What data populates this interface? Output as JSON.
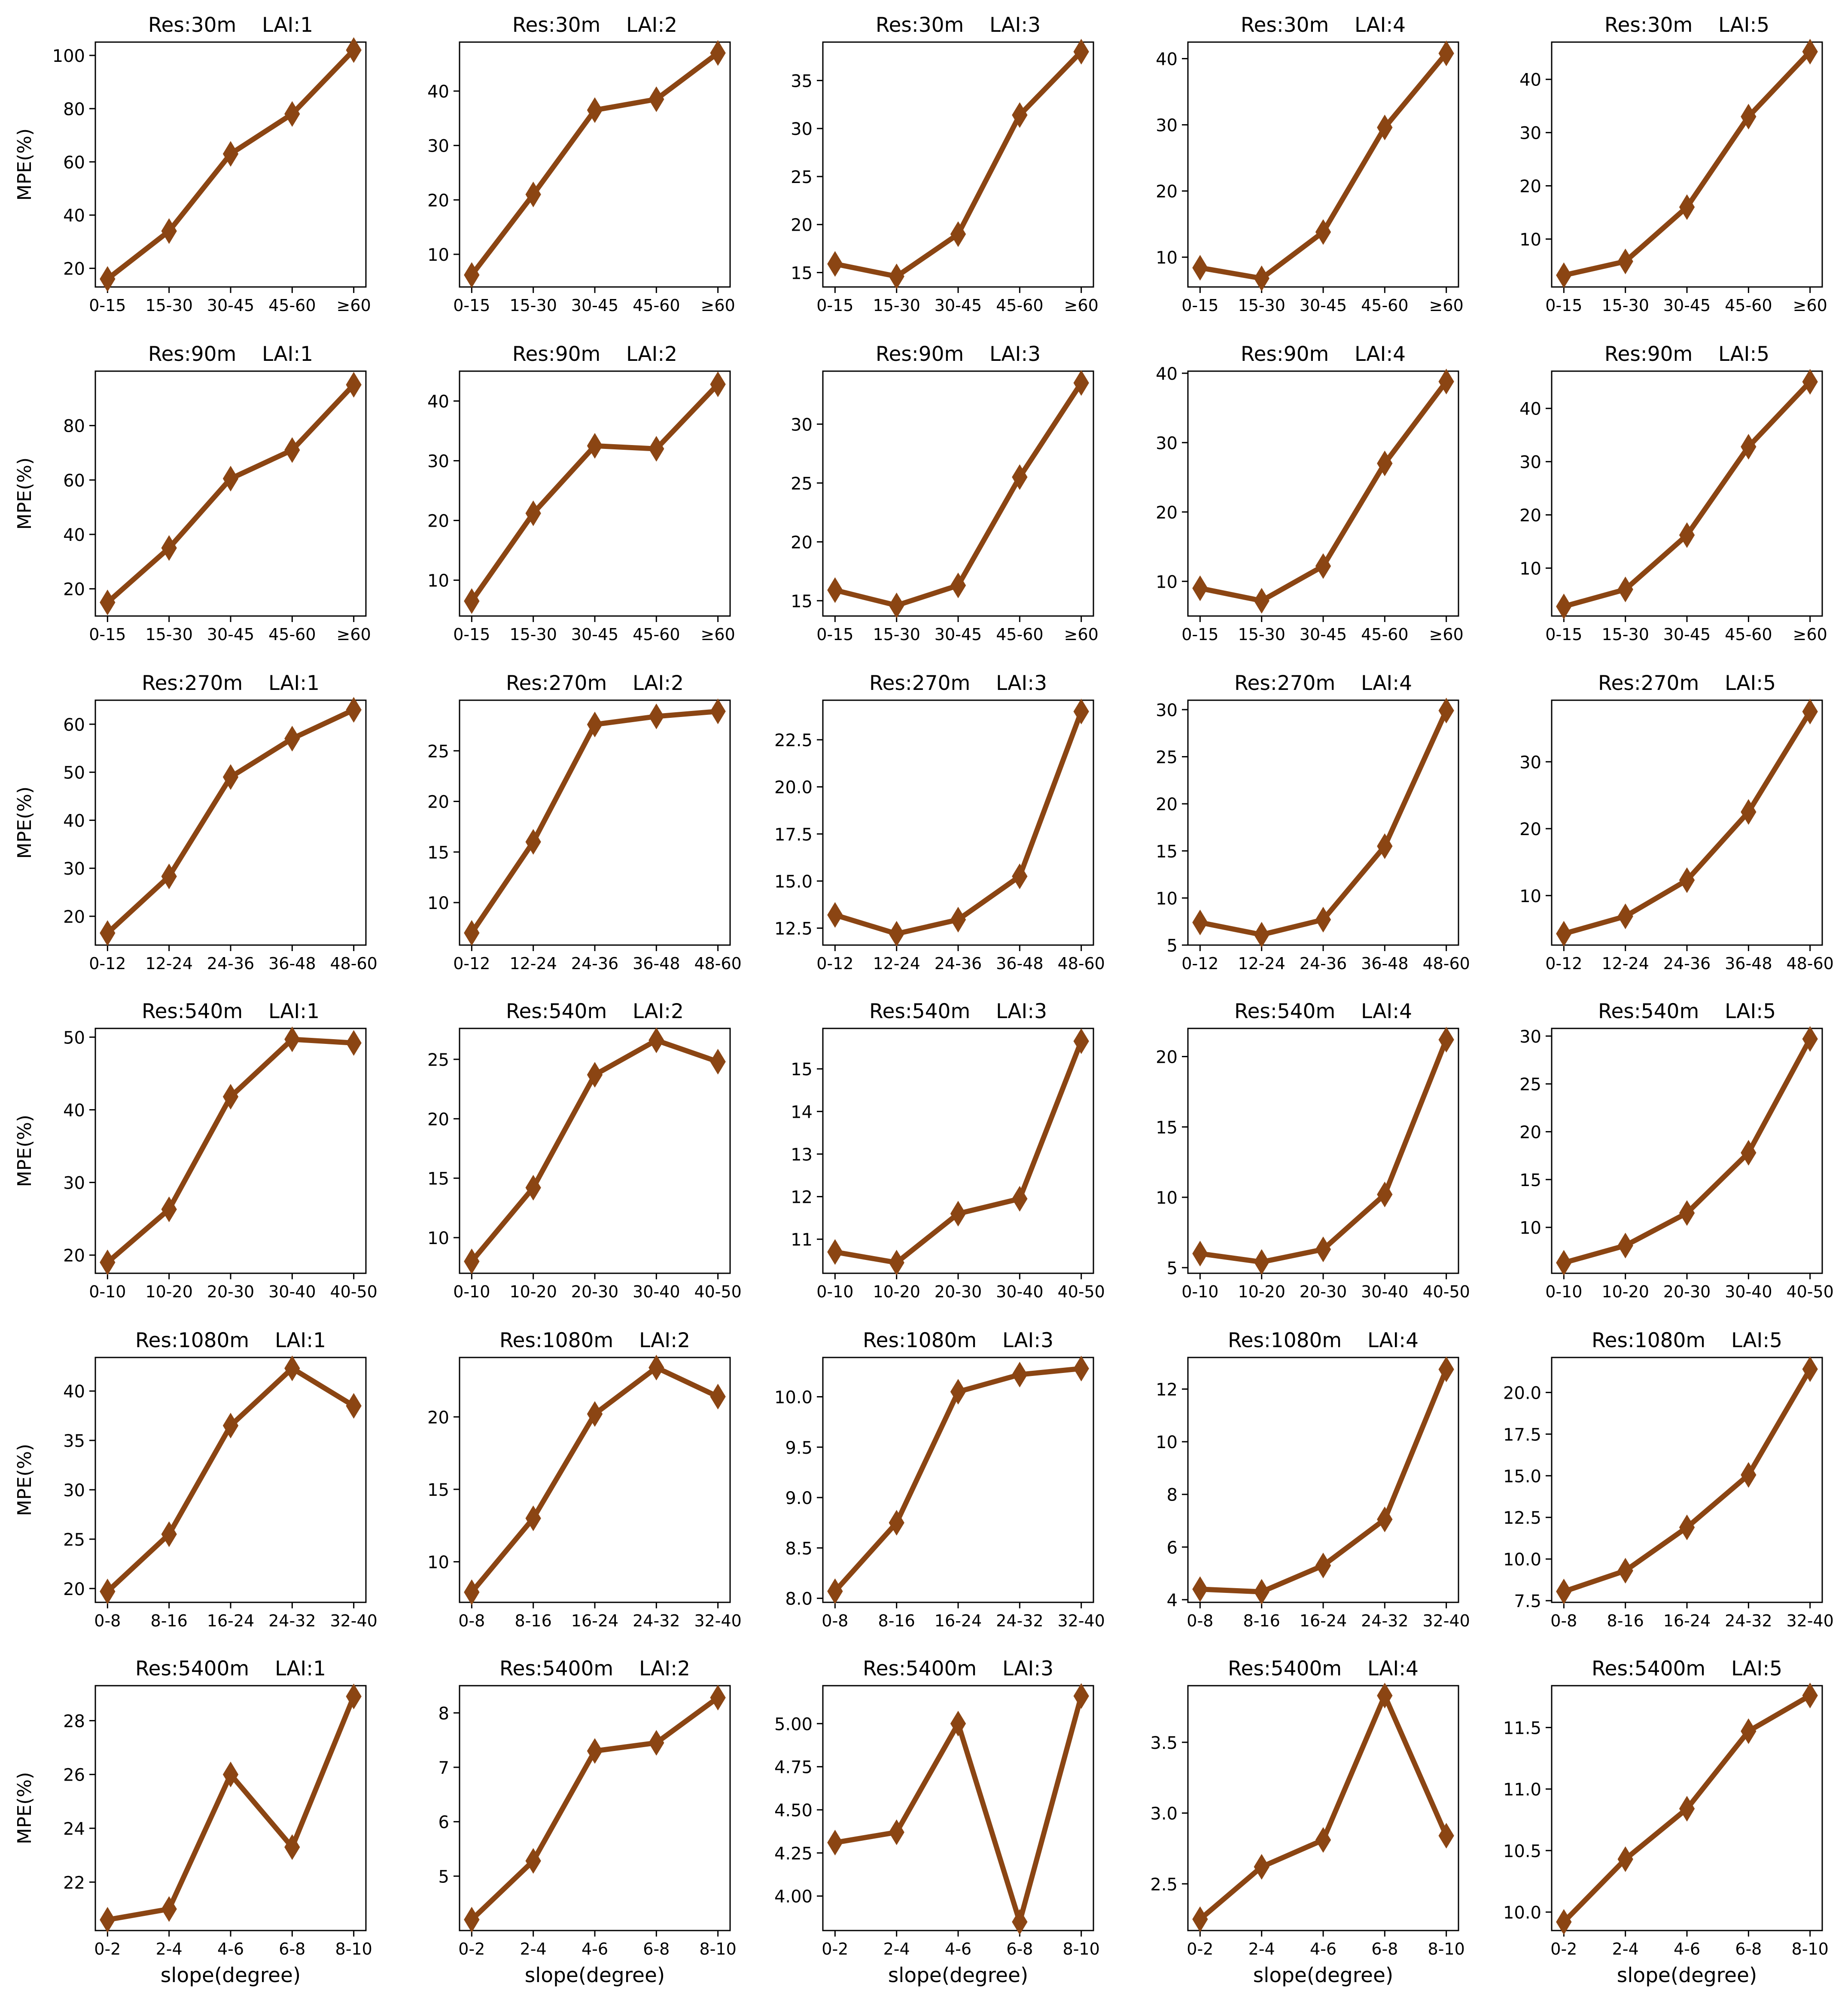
{
  "style": {
    "line_color": "#8B4513",
    "axis_color": "#000000",
    "background": "#ffffff"
  },
  "chart_data": [
    {
      "type": "line",
      "title": "Res:30m    LAI:1",
      "xlabel": "",
      "ylabel": "MPE(%)",
      "categories": [
        "0-15",
        "15-30",
        "30-45",
        "45-60",
        "≥60"
      ],
      "values": [
        16,
        34,
        63,
        78,
        102
      ],
      "ylim": [
        13,
        105
      ],
      "yticks": [
        20,
        40,
        60,
        80,
        100
      ],
      "ytick_labels": [
        "20",
        "40",
        "60",
        "80",
        "100"
      ]
    },
    {
      "type": "line",
      "title": "Res:30m    LAI:2",
      "xlabel": "",
      "ylabel": "",
      "categories": [
        "0-15",
        "15-30",
        "30-45",
        "45-60",
        "≥60"
      ],
      "values": [
        6.2,
        21,
        36.5,
        38.5,
        47
      ],
      "ylim": [
        4,
        49
      ],
      "yticks": [
        10,
        20,
        30,
        40
      ],
      "ytick_labels": [
        "10",
        "20",
        "30",
        "40"
      ]
    },
    {
      "type": "line",
      "title": "Res:30m    LAI:3",
      "xlabel": "",
      "ylabel": "",
      "categories": [
        "0-15",
        "15-30",
        "30-45",
        "45-60",
        "≥60"
      ],
      "values": [
        15.9,
        14.6,
        19,
        31.4,
        38
      ],
      "ylim": [
        13.5,
        39
      ],
      "yticks": [
        15,
        20,
        25,
        30,
        35
      ],
      "ytick_labels": [
        "15",
        "20",
        "25",
        "30",
        "35"
      ]
    },
    {
      "type": "line",
      "title": "Res:30m    LAI:4",
      "xlabel": "",
      "ylabel": "",
      "categories": [
        "0-15",
        "15-30",
        "30-45",
        "45-60",
        "≥60"
      ],
      "values": [
        8.4,
        6.8,
        13.8,
        29.6,
        40.8
      ],
      "ylim": [
        5.5,
        42.5
      ],
      "yticks": [
        10,
        20,
        30,
        40
      ],
      "ytick_labels": [
        "10",
        "20",
        "30",
        "40"
      ]
    },
    {
      "type": "line",
      "title": "Res:30m    LAI:5",
      "xlabel": "",
      "ylabel": "",
      "categories": [
        "0-15",
        "15-30",
        "30-45",
        "45-60",
        "≥60"
      ],
      "values": [
        3.2,
        5.8,
        16,
        33,
        45.2
      ],
      "ylim": [
        1,
        47
      ],
      "yticks": [
        10,
        20,
        30,
        40
      ],
      "ytick_labels": [
        "10",
        "20",
        "30",
        "40"
      ]
    },
    {
      "type": "line",
      "title": "Res:90m    LAI:1",
      "xlabel": "",
      "ylabel": "MPE(%)",
      "categories": [
        "0-15",
        "15-30",
        "30-45",
        "45-60",
        "≥60"
      ],
      "values": [
        15,
        35,
        60.5,
        71,
        95
      ],
      "ylim": [
        10,
        100
      ],
      "yticks": [
        20,
        40,
        60,
        80
      ],
      "ytick_labels": [
        "20",
        "40",
        "60",
        "80"
      ]
    },
    {
      "type": "line",
      "title": "Res:90m    LAI:2",
      "xlabel": "",
      "ylabel": "",
      "categories": [
        "0-15",
        "15-30",
        "30-45",
        "45-60",
        "≥60"
      ],
      "values": [
        6.5,
        21.2,
        32.5,
        32,
        42.8
      ],
      "ylim": [
        4,
        45
      ],
      "yticks": [
        10,
        20,
        30,
        40
      ],
      "ytick_labels": [
        "10",
        "20",
        "30",
        "40"
      ]
    },
    {
      "type": "line",
      "title": "Res:90m    LAI:3",
      "xlabel": "",
      "ylabel": "",
      "categories": [
        "0-15",
        "15-30",
        "30-45",
        "45-60",
        "≥60"
      ],
      "values": [
        15.9,
        14.6,
        16.3,
        25.5,
        33.5
      ],
      "ylim": [
        13.7,
        34.5
      ],
      "yticks": [
        15,
        20,
        25,
        30
      ],
      "ytick_labels": [
        "15",
        "20",
        "25",
        "30"
      ]
    },
    {
      "type": "line",
      "title": "Res:90m    LAI:4",
      "xlabel": "",
      "ylabel": "",
      "categories": [
        "0-15",
        "15-30",
        "30-45",
        "45-60",
        "≥60"
      ],
      "values": [
        9,
        7.2,
        12.2,
        27,
        38.8
      ],
      "ylim": [
        5,
        40.3
      ],
      "yticks": [
        10,
        20,
        30,
        40
      ],
      "ytick_labels": [
        "10",
        "20",
        "30",
        "40"
      ]
    },
    {
      "type": "line",
      "title": "Res:90m    LAI:5",
      "xlabel": "",
      "ylabel": "",
      "categories": [
        "0-15",
        "15-30",
        "30-45",
        "45-60",
        "≥60"
      ],
      "values": [
        2.8,
        6,
        16.2,
        32.8,
        45
      ],
      "ylim": [
        1,
        47
      ],
      "yticks": [
        10,
        20,
        30,
        40
      ],
      "ytick_labels": [
        "10",
        "20",
        "30",
        "40"
      ]
    },
    {
      "type": "line",
      "title": "Res:270m    LAI:1",
      "xlabel": "",
      "ylabel": "MPE(%)",
      "categories": [
        "0-12",
        "12-24",
        "24-36",
        "36-48",
        "48-60"
      ],
      "values": [
        16.5,
        28.3,
        49,
        57,
        63
      ],
      "ylim": [
        14,
        65
      ],
      "yticks": [
        20,
        30,
        40,
        50,
        60
      ],
      "ytick_labels": [
        "20",
        "30",
        "40",
        "50",
        "60"
      ]
    },
    {
      "type": "line",
      "title": "Res:270m    LAI:2",
      "xlabel": "",
      "ylabel": "",
      "categories": [
        "0-12",
        "12-24",
        "24-36",
        "36-48",
        "48-60"
      ],
      "values": [
        7,
        16,
        27.6,
        28.4,
        28.9
      ],
      "ylim": [
        5.8,
        30
      ],
      "yticks": [
        10,
        15,
        20,
        25
      ],
      "ytick_labels": [
        "10",
        "15",
        "20",
        "25"
      ]
    },
    {
      "type": "line",
      "title": "Res:270m    LAI:3",
      "xlabel": "",
      "ylabel": "",
      "categories": [
        "0-12",
        "12-24",
        "24-36",
        "36-48",
        "48-60"
      ],
      "values": [
        13.2,
        12.2,
        12.95,
        15.25,
        24
      ],
      "ylim": [
        11.6,
        24.6
      ],
      "yticks": [
        12.5,
        15,
        17.5,
        20,
        22.5
      ],
      "ytick_labels": [
        "12.5",
        "15.0",
        "17.5",
        "20.0",
        "22.5"
      ]
    },
    {
      "type": "line",
      "title": "Res:270m    LAI:4",
      "xlabel": "",
      "ylabel": "",
      "categories": [
        "0-12",
        "12-24",
        "24-36",
        "36-48",
        "48-60"
      ],
      "values": [
        7.4,
        6.1,
        7.7,
        15.5,
        29.9
      ],
      "ylim": [
        5,
        31
      ],
      "yticks": [
        5,
        10,
        15,
        20,
        25,
        30
      ],
      "ytick_labels": [
        "5",
        "10",
        "15",
        "20",
        "25",
        "30"
      ]
    },
    {
      "type": "line",
      "title": "Res:270m    LAI:5",
      "xlabel": "",
      "ylabel": "",
      "categories": [
        "0-12",
        "12-24",
        "24-36",
        "36-48",
        "48-60"
      ],
      "values": [
        4.3,
        6.9,
        12.3,
        22.5,
        37.5
      ],
      "ylim": [
        2.6,
        39.2
      ],
      "yticks": [
        10,
        20,
        30
      ],
      "ytick_labels": [
        "10",
        "20",
        "30"
      ]
    },
    {
      "type": "line",
      "title": "Res:540m    LAI:1",
      "xlabel": "",
      "ylabel": "MPE(%)",
      "categories": [
        "0-10",
        "10-20",
        "20-30",
        "30-40",
        "40-50"
      ],
      "values": [
        19,
        26.3,
        41.8,
        49.7,
        49.2
      ],
      "ylim": [
        17.5,
        51.2
      ],
      "yticks": [
        20,
        30,
        40,
        50
      ],
      "ytick_labels": [
        "20",
        "30",
        "40",
        "50"
      ]
    },
    {
      "type": "line",
      "title": "Res:540m    LAI:2",
      "xlabel": "",
      "ylabel": "",
      "categories": [
        "0-10",
        "10-20",
        "20-30",
        "30-40",
        "40-50"
      ],
      "values": [
        8,
        14.2,
        23.7,
        26.6,
        24.8
      ],
      "ylim": [
        7,
        27.6
      ],
      "yticks": [
        10,
        15,
        20,
        25
      ],
      "ytick_labels": [
        "10",
        "15",
        "20",
        "25"
      ]
    },
    {
      "type": "line",
      "title": "Res:540m    LAI:3",
      "xlabel": "",
      "ylabel": "",
      "categories": [
        "0-10",
        "10-20",
        "20-30",
        "30-40",
        "40-50"
      ],
      "values": [
        10.7,
        10.45,
        11.6,
        11.95,
        15.65
      ],
      "ylim": [
        10.2,
        15.95
      ],
      "yticks": [
        11,
        12,
        13,
        14,
        15
      ],
      "ytick_labels": [
        "11",
        "12",
        "13",
        "14",
        "15"
      ]
    },
    {
      "type": "line",
      "title": "Res:540m    LAI:4",
      "xlabel": "",
      "ylabel": "",
      "categories": [
        "0-10",
        "10-20",
        "20-30",
        "30-40",
        "40-50"
      ],
      "values": [
        6,
        5.4,
        6.3,
        10.2,
        21.2
      ],
      "ylim": [
        4.6,
        22
      ],
      "yticks": [
        5,
        10,
        15,
        20
      ],
      "ytick_labels": [
        "5",
        "10",
        "15",
        "20"
      ]
    },
    {
      "type": "line",
      "title": "Res:540m    LAI:5",
      "xlabel": "",
      "ylabel": "",
      "categories": [
        "0-10",
        "10-20",
        "20-30",
        "30-40",
        "40-50"
      ],
      "values": [
        6.3,
        8.1,
        11.5,
        17.8,
        29.7
      ],
      "ylim": [
        5.2,
        30.8
      ],
      "yticks": [
        10,
        15,
        20,
        25,
        30
      ],
      "ytick_labels": [
        "10",
        "15",
        "20",
        "25",
        "30"
      ]
    },
    {
      "type": "line",
      "title": "Res:1080m    LAI:1",
      "xlabel": "",
      "ylabel": "MPE(%)",
      "categories": [
        "0-8",
        "8-16",
        "16-24",
        "24-32",
        "32-40"
      ],
      "values": [
        19.7,
        25.5,
        36.5,
        42.3,
        38.5
      ],
      "ylim": [
        18.6,
        43.4
      ],
      "yticks": [
        20,
        25,
        30,
        35,
        40
      ],
      "ytick_labels": [
        "20",
        "25",
        "30",
        "35",
        "40"
      ]
    },
    {
      "type": "line",
      "title": "Res:1080m    LAI:2",
      "xlabel": "",
      "ylabel": "",
      "categories": [
        "0-8",
        "8-16",
        "16-24",
        "24-32",
        "32-40"
      ],
      "values": [
        7.9,
        13,
        20.2,
        23.4,
        21.4
      ],
      "ylim": [
        7.2,
        24.1
      ],
      "yticks": [
        10,
        15,
        20
      ],
      "ytick_labels": [
        "10",
        "15",
        "20"
      ]
    },
    {
      "type": "line",
      "title": "Res:1080m    LAI:3",
      "xlabel": "",
      "ylabel": "",
      "categories": [
        "0-8",
        "8-16",
        "16-24",
        "24-32",
        "32-40"
      ],
      "values": [
        8.07,
        8.75,
        10.05,
        10.22,
        10.28
      ],
      "ylim": [
        7.96,
        10.39
      ],
      "yticks": [
        8,
        8.5,
        9,
        9.5,
        10
      ],
      "ytick_labels": [
        "8.0",
        "8.5",
        "9.0",
        "9.5",
        "10.0"
      ]
    },
    {
      "type": "line",
      "title": "Res:1080m    LAI:4",
      "xlabel": "",
      "ylabel": "",
      "categories": [
        "0-8",
        "8-16",
        "16-24",
        "24-32",
        "32-40"
      ],
      "values": [
        4.4,
        4.3,
        5.3,
        7.05,
        12.75
      ],
      "ylim": [
        3.9,
        13.2
      ],
      "yticks": [
        4,
        6,
        8,
        10,
        12
      ],
      "ytick_labels": [
        "4",
        "6",
        "8",
        "10",
        "12"
      ]
    },
    {
      "type": "line",
      "title": "Res:1080m    LAI:5",
      "xlabel": "",
      "ylabel": "",
      "categories": [
        "0-8",
        "8-16",
        "16-24",
        "24-32",
        "32-40"
      ],
      "values": [
        8.05,
        9.3,
        11.9,
        15.05,
        21.4
      ],
      "ylim": [
        7.4,
        22.1
      ],
      "yticks": [
        7.5,
        10,
        12.5,
        15,
        17.5,
        20
      ],
      "ytick_labels": [
        "7.5",
        "10.0",
        "12.5",
        "15.0",
        "17.5",
        "20.0"
      ]
    },
    {
      "type": "line",
      "title": "Res:5400m    LAI:1",
      "xlabel": "slope(degree)",
      "ylabel": "MPE(%)",
      "categories": [
        "0-2",
        "2-4",
        "4-6",
        "6-8",
        "8-10"
      ],
      "values": [
        20.6,
        21,
        26,
        23.3,
        28.9
      ],
      "ylim": [
        20.2,
        29.3
      ],
      "yticks": [
        22,
        24,
        26,
        28
      ],
      "ytick_labels": [
        "22",
        "24",
        "26",
        "28"
      ]
    },
    {
      "type": "line",
      "title": "Res:5400m    LAI:2",
      "xlabel": "slope(degree)",
      "ylabel": "",
      "categories": [
        "0-2",
        "2-4",
        "4-6",
        "6-8",
        "8-10"
      ],
      "values": [
        4.2,
        5.28,
        7.3,
        7.45,
        8.28
      ],
      "ylim": [
        4,
        8.5
      ],
      "yticks": [
        5,
        6,
        7,
        8
      ],
      "ytick_labels": [
        "5",
        "6",
        "7",
        "8"
      ]
    },
    {
      "type": "line",
      "title": "Res:5400m    LAI:3",
      "xlabel": "slope(degree)",
      "ylabel": "",
      "categories": [
        "0-2",
        "2-4",
        "4-6",
        "6-8",
        "8-10"
      ],
      "values": [
        4.31,
        4.37,
        5,
        3.85,
        5.16
      ],
      "ylim": [
        3.8,
        5.22
      ],
      "yticks": [
        4,
        4.25,
        4.5,
        4.75,
        5
      ],
      "ytick_labels": [
        "4.00",
        "4.25",
        "4.50",
        "4.75",
        "5.00"
      ]
    },
    {
      "type": "line",
      "title": "Res:5400m    LAI:4",
      "xlabel": "slope(degree)",
      "ylabel": "",
      "categories": [
        "0-2",
        "2-4",
        "4-6",
        "6-8",
        "8-10"
      ],
      "values": [
        2.25,
        2.62,
        2.81,
        3.83,
        2.84
      ],
      "ylim": [
        2.17,
        3.9
      ],
      "yticks": [
        2.5,
        3,
        3.5
      ],
      "ytick_labels": [
        "2.5",
        "3.0",
        "3.5"
      ]
    },
    {
      "type": "line",
      "title": "Res:5400m    LAI:5",
      "xlabel": "slope(degree)",
      "ylabel": "",
      "categories": [
        "0-2",
        "2-4",
        "4-6",
        "6-8",
        "8-10"
      ],
      "values": [
        9.92,
        10.43,
        10.84,
        11.47,
        11.76
      ],
      "ylim": [
        9.85,
        11.84
      ],
      "yticks": [
        10,
        10.5,
        11,
        11.5
      ],
      "ytick_labels": [
        "10.0",
        "10.5",
        "11.0",
        "11.5"
      ]
    }
  ]
}
